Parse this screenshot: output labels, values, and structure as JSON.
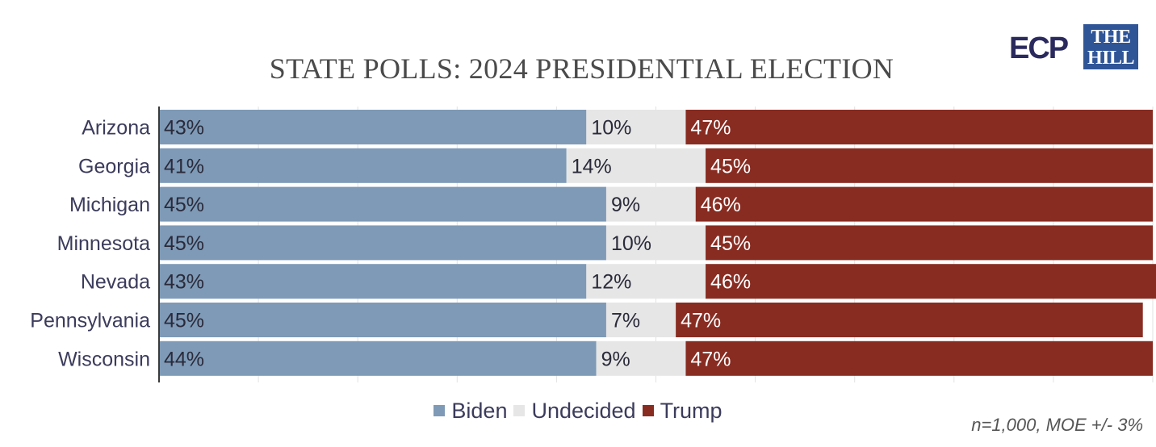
{
  "logos": {
    "ecp": "ECP",
    "hill_line1": "THE",
    "hill_line2": "HILL"
  },
  "footnote": "n=1,000, MOE +/- 3%",
  "colors": {
    "Biden": "#7e9ab6",
    "Undecided": "#e6e6e6",
    "Trump": "#882c22"
  },
  "chart_data": {
    "type": "bar",
    "orientation": "horizontal",
    "stacked": true,
    "title": "STATE POLLS: 2024 PRESIDENTIAL ELECTION",
    "categories": [
      "Arizona",
      "Georgia",
      "Michigan",
      "Minnesota",
      "Nevada",
      "Pennsylvania",
      "Wisconsin"
    ],
    "series": [
      {
        "name": "Biden",
        "values": [
          43,
          41,
          45,
          45,
          43,
          45,
          44
        ]
      },
      {
        "name": "Undecided",
        "values": [
          10,
          14,
          9,
          10,
          12,
          7,
          9
        ]
      },
      {
        "name": "Trump",
        "values": [
          47,
          45,
          46,
          45,
          46,
          47,
          47
        ]
      }
    ],
    "value_suffix": "%",
    "xlim": [
      0,
      100
    ],
    "grid": true,
    "legend_position": "bottom"
  }
}
